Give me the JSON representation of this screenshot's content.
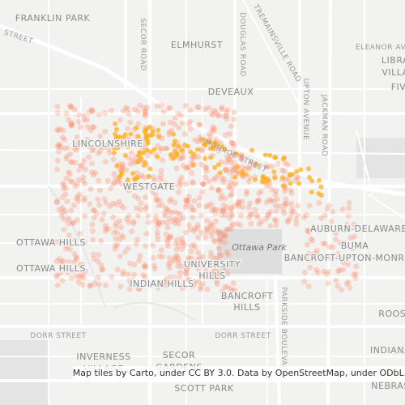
{
  "map": {
    "neighborhoods": [
      "FRANKLIN PARK",
      "ELMHURST",
      "DEVEAUX",
      "LINCOLNSHIRE",
      "WESTGATE",
      "AUBURN-DELAWARE",
      "BUMA",
      "BANCROFT-UPTON-MONR",
      "OTTAWA HILLS",
      "OTTAWA HILLS",
      "UNIVERSITY",
      "HILLS",
      "INDIAN HILLS",
      "BANCROFT",
      "HILLS",
      "INVERNESS",
      "VILLAGE",
      "SECOR",
      "GARDENS",
      "SCOTT PARK",
      "ROOSE",
      "INDIANA",
      "NEBRAS",
      "ELEANOR AV",
      "LIBRA",
      "VILLA",
      "FIV"
    ],
    "streets": [
      "STREET",
      "SECOR ROAD",
      "DOUGLAS ROAD",
      "TREMAINSVILLE ROAD",
      "UPTON AVENUE",
      "JACKMAN ROAD",
      "MONROE STREET",
      "DORR STREET",
      "DORR STREET",
      "PARKSIDE BOULEVARD"
    ],
    "parks": [
      "Ottawa Park"
    ],
    "attribution": "Map tiles by Carto, under CC BY 3.0. Data by OpenStreetMap, under ODbL."
  }
}
